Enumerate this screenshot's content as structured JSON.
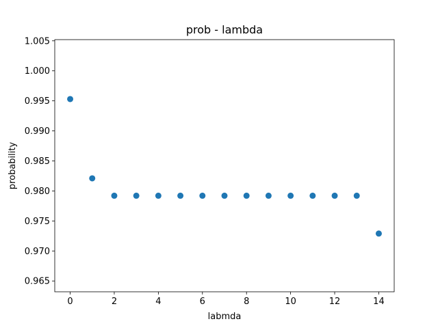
{
  "chart_data": {
    "type": "scatter",
    "title": "prob - lambda",
    "xlabel": "labmda",
    "ylabel": "probability",
    "xlim": [
      -0.7,
      14.7
    ],
    "ylim": [
      0.9632,
      1.0052
    ],
    "xticks": [
      0,
      2,
      4,
      6,
      8,
      10,
      12,
      14
    ],
    "xtick_labels": [
      "0",
      "2",
      "4",
      "6",
      "8",
      "10",
      "12",
      "14"
    ],
    "yticks": [
      0.965,
      0.97,
      0.975,
      0.98,
      0.985,
      0.99,
      0.995,
      1.0,
      1.005
    ],
    "ytick_labels": [
      "0.965",
      "0.970",
      "0.975",
      "0.980",
      "0.985",
      "0.990",
      "0.995",
      "1.000",
      "1.005"
    ],
    "grid": false,
    "series": [
      {
        "x": [
          0,
          1,
          2,
          3,
          4,
          5,
          6,
          7,
          8,
          9,
          10,
          11,
          12,
          13,
          14
        ],
        "y": [
          0.9953,
          0.9821,
          0.9792,
          0.9792,
          0.9792,
          0.9792,
          0.9792,
          0.9792,
          0.9792,
          0.9792,
          0.9792,
          0.9792,
          0.9792,
          0.9792,
          0.9729
        ],
        "color": "#1f77b4"
      }
    ]
  }
}
